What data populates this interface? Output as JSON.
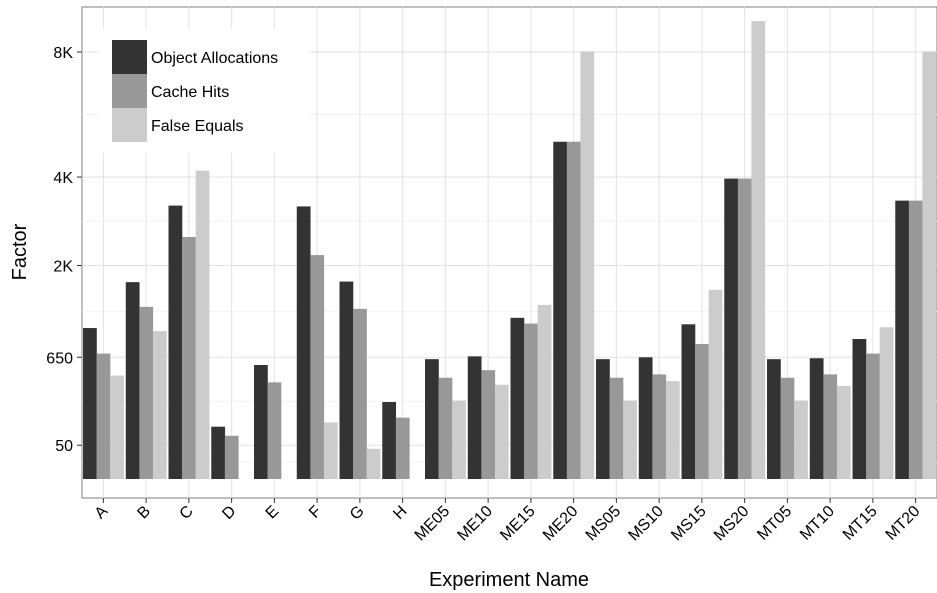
{
  "chart_data": {
    "type": "bar",
    "xlabel": "Experiment Name",
    "ylabel": "Factor",
    "yscale": "sqrt",
    "ylim": [
      0,
      11000
    ],
    "yticks": [
      50,
      650,
      2000,
      4000,
      8000
    ],
    "ytick_labels": [
      "50",
      "650",
      "2K",
      "4K",
      "8K"
    ],
    "grid": true,
    "legend_position": "top-left",
    "categories": [
      "A",
      "B",
      "C",
      "D",
      "E",
      "F",
      "G",
      "H",
      "ME05",
      "ME10",
      "ME15",
      "ME20",
      "MS05",
      "MS10",
      "MS15",
      "MS20",
      "MT05",
      "MT10",
      "MT15",
      "MT20"
    ],
    "series": [
      {
        "name": "Object Allocations",
        "color": "#333333",
        "values": [
          1000,
          1700,
          3280,
          120,
          570,
          3260,
          1710,
          260,
          630,
          660,
          1140,
          4990,
          630,
          650,
          1050,
          3960,
          630,
          640,
          860,
          3400
        ]
      },
      {
        "name": "Cache Hits",
        "color": "#989898",
        "values": [
          690,
          1300,
          2570,
          82,
          410,
          2200,
          1270,
          165,
          450,
          520,
          1060,
          4990,
          450,
          480,
          800,
          3960,
          450,
          480,
          690,
          3400
        ]
      },
      {
        "name": "False Equals",
        "color": "#cccccc",
        "values": [
          470,
          960,
          4170,
          0,
          0,
          140,
          40,
          0,
          270,
          390,
          1330,
          8020,
          270,
          420,
          1570,
          9200,
          270,
          380,
          1010,
          8020
        ]
      }
    ]
  }
}
